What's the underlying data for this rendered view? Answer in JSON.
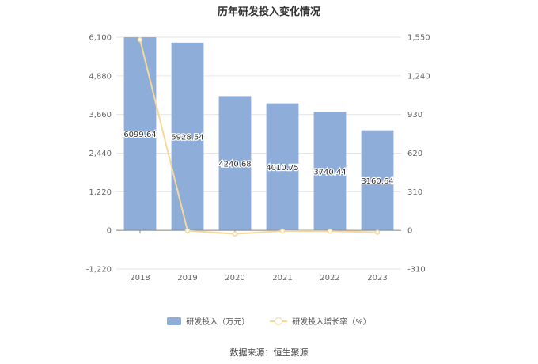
{
  "chart_data": {
    "type": "bar",
    "title": "历年研发投入变化情况",
    "categories": [
      "2018",
      "2019",
      "2020",
      "2021",
      "2022",
      "2023"
    ],
    "series": [
      {
        "name": "研发投入（万元）",
        "type": "bar",
        "axis": "left",
        "color": "#8eadd9",
        "values": [
          6099.64,
          5928.54,
          4240.68,
          4010.75,
          3740.44,
          3160.64
        ],
        "labels": [
          "6099.64",
          "5928.54",
          "4240.68",
          "4010.75",
          "3740.44",
          "3160.64"
        ]
      },
      {
        "name": "研发投入增长率（%）",
        "type": "line",
        "axis": "right",
        "color": "#f5d99a",
        "values": [
          1530,
          -2.8,
          -28.47,
          -5.42,
          -6.74,
          -15.5
        ]
      }
    ],
    "y_left": {
      "min": -1220,
      "max": 6100,
      "ticks": [
        -1220,
        0,
        1220,
        2440,
        3660,
        4880,
        6100
      ],
      "tick_labels": [
        "-1,220",
        "0",
        "1,220",
        "2,440",
        "3,660",
        "4,880",
        "6,100"
      ]
    },
    "y_right": {
      "min": -310,
      "max": 1550,
      "ticks": [
        -310,
        0,
        310,
        620,
        930,
        1240,
        1550
      ],
      "tick_labels": [
        "-310",
        "0",
        "310",
        "620",
        "930",
        "1,240",
        "1,550"
      ]
    },
    "grid": true,
    "legend_position": "bottom"
  },
  "source": "数据来源：恒生聚源"
}
